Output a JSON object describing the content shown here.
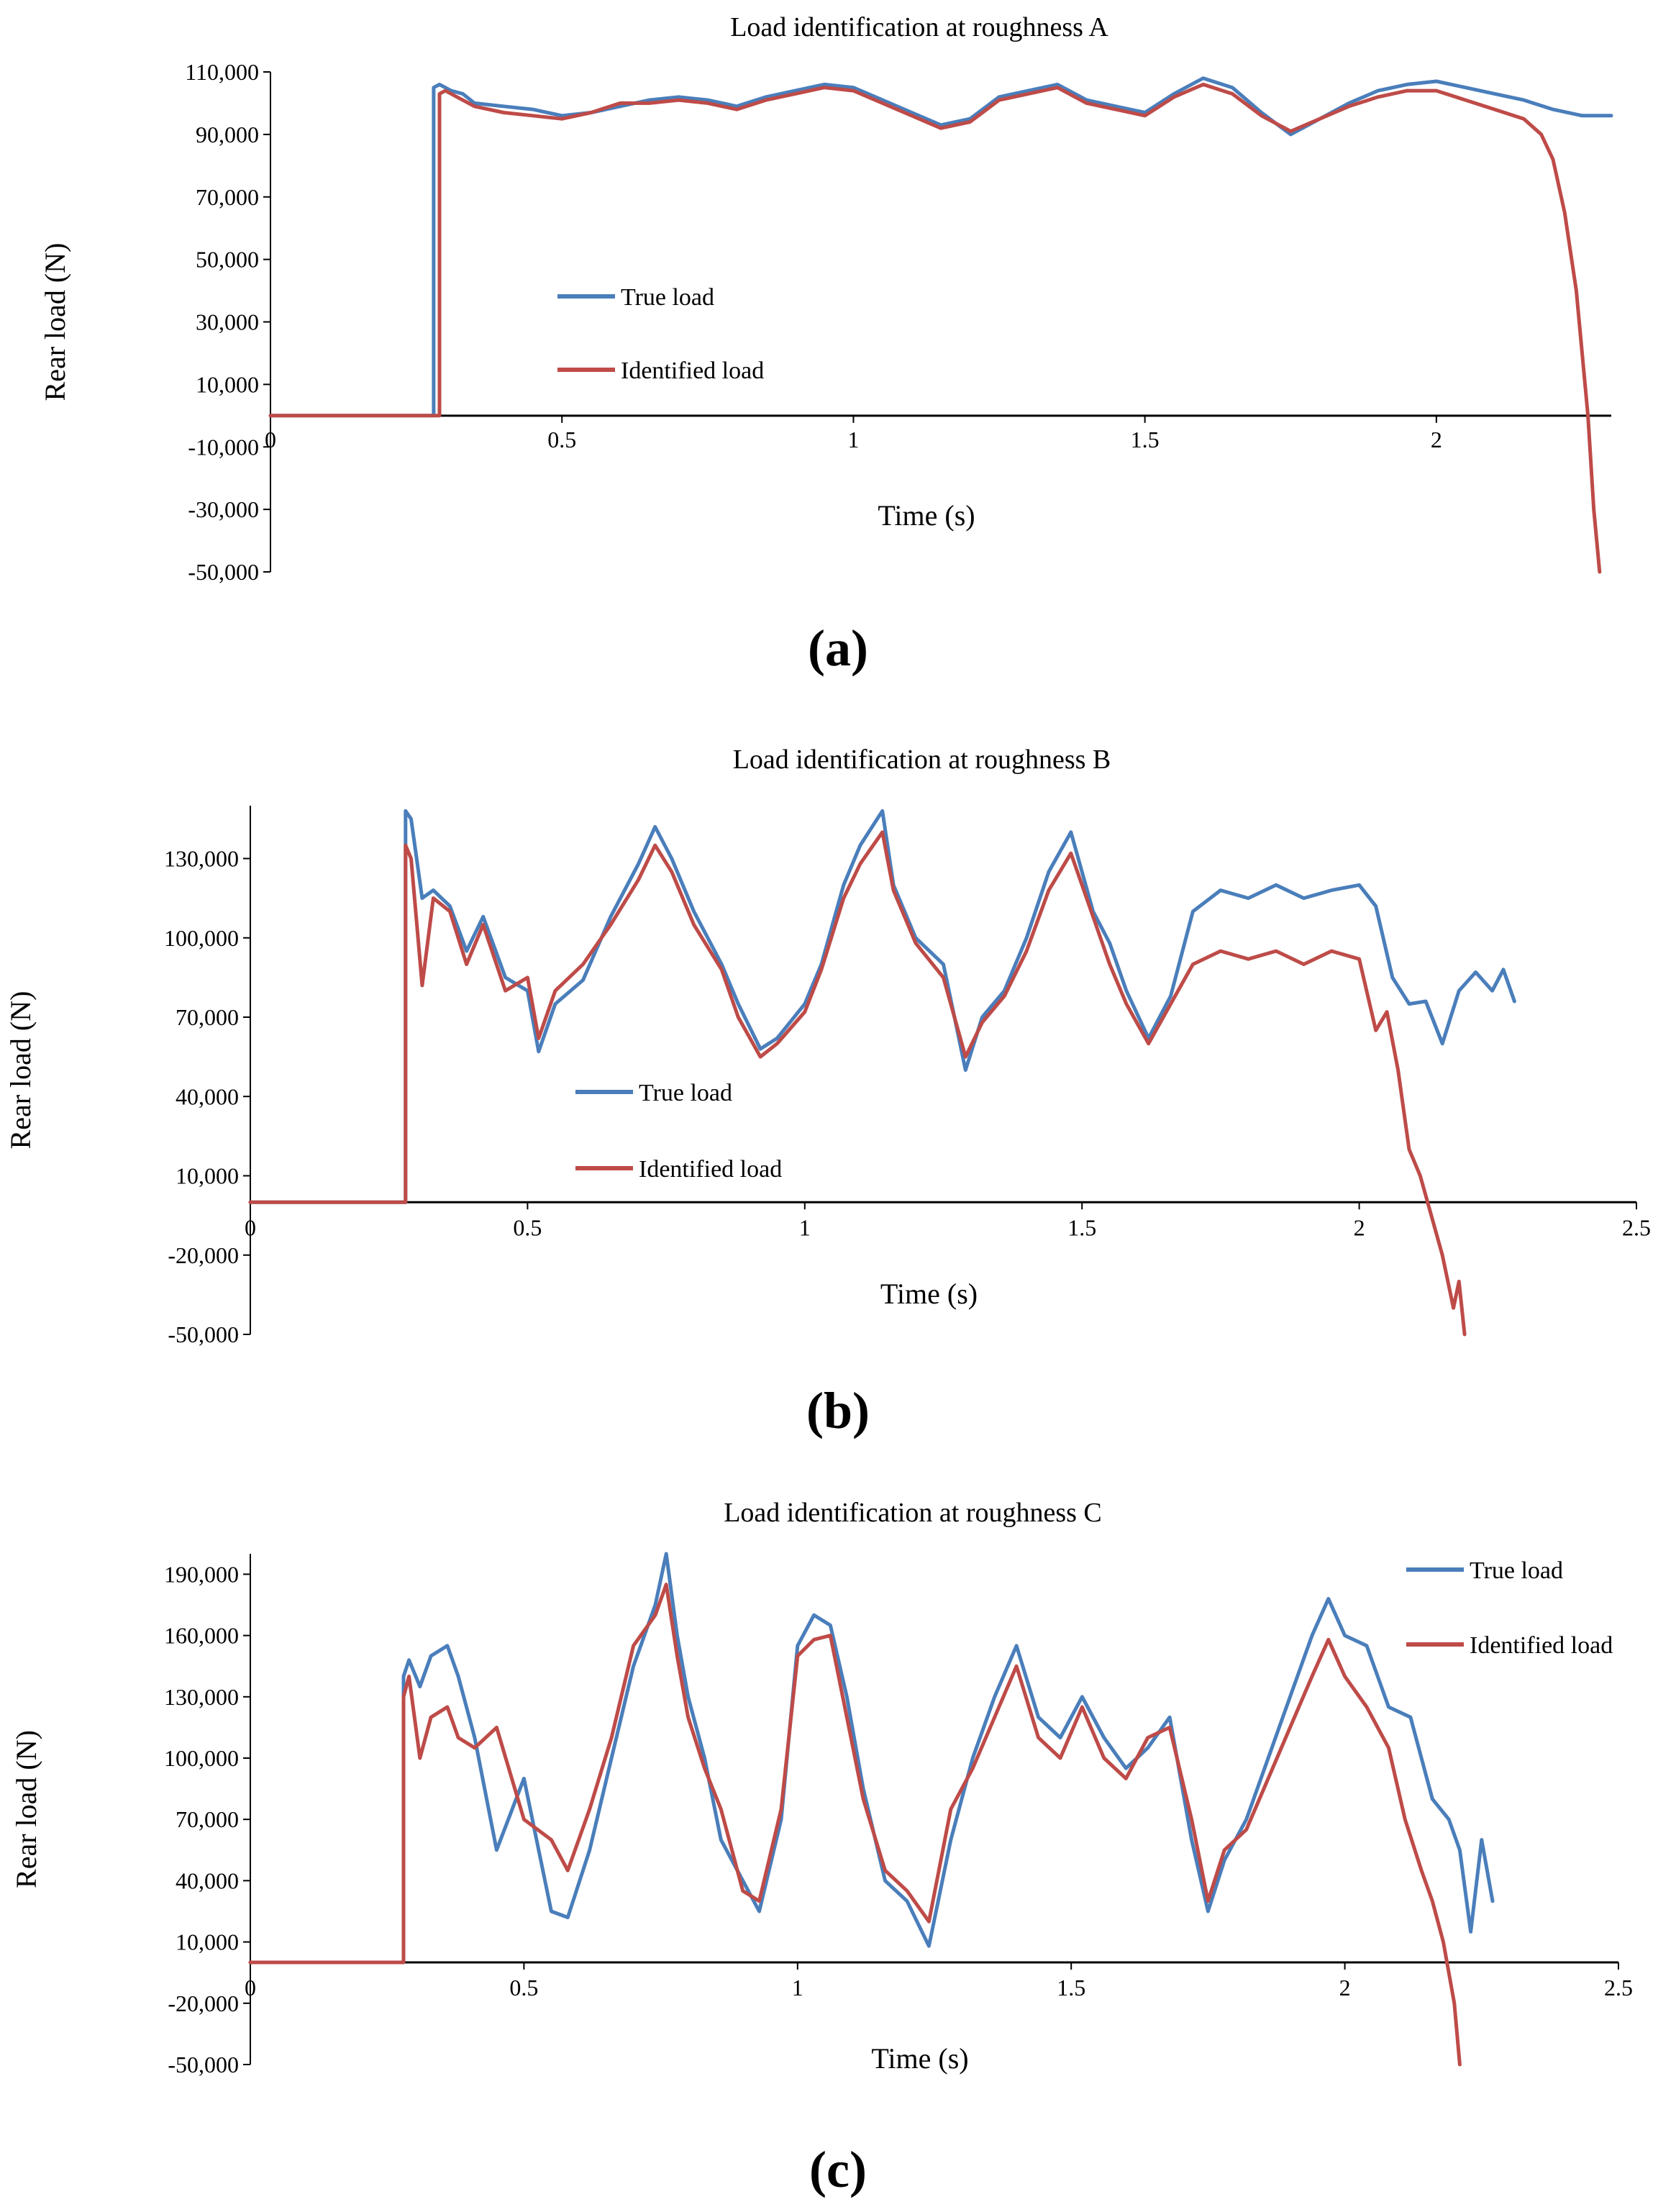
{
  "colors": {
    "true_load": "#4a7ebb",
    "identified_load": "#be4b48",
    "axis": "#000000"
  },
  "chart_data": [
    {
      "type": "line",
      "panel_label": "(a)",
      "title": "Load identification at roughness A",
      "xlabel": "Time (s)",
      "ylabel": "Rear load (N)",
      "xlim": [
        0,
        2.3
      ],
      "ylim": [
        -50000,
        110000
      ],
      "xticks": [
        0,
        0.5,
        1,
        1.5,
        2
      ],
      "xtick_labels": [
        "0",
        "0.5",
        "1",
        "1.5",
        "2"
      ],
      "yticks": [
        110000,
        90000,
        70000,
        50000,
        30000,
        10000,
        -10000,
        -30000,
        -50000
      ],
      "ytick_labels": [
        "110,000",
        "90,000",
        "70,000",
        "50,000",
        "30,000",
        "10,000",
        "-10,000",
        "-30,000",
        "-50,000"
      ],
      "legend": [
        "True load",
        "Identified load"
      ],
      "legend_position": "center-left",
      "series": [
        {
          "name": "True load",
          "color": "#4a7ebb",
          "x": [
            0,
            0.28,
            0.28,
            0.29,
            0.31,
            0.33,
            0.35,
            0.4,
            0.45,
            0.5,
            0.55,
            0.6,
            0.65,
            0.7,
            0.75,
            0.8,
            0.85,
            0.9,
            0.95,
            1.0,
            1.05,
            1.1,
            1.15,
            1.2,
            1.25,
            1.3,
            1.35,
            1.4,
            1.45,
            1.5,
            1.55,
            1.6,
            1.65,
            1.7,
            1.75,
            1.8,
            1.85,
            1.9,
            1.95,
            2.0,
            2.05,
            2.1,
            2.15,
            2.2,
            2.25,
            2.3
          ],
          "y": [
            0,
            0,
            105000,
            106000,
            104000,
            103000,
            100000,
            99000,
            98000,
            96000,
            97000,
            99000,
            101000,
            102000,
            101000,
            99000,
            102000,
            104000,
            106000,
            105000,
            101000,
            97000,
            93000,
            95000,
            102000,
            104000,
            106000,
            101000,
            99000,
            97000,
            103000,
            108000,
            105000,
            97000,
            90000,
            95000,
            100000,
            104000,
            106000,
            107000,
            105000,
            103000,
            101000,
            98000,
            96000,
            96000
          ]
        },
        {
          "name": "Identified load",
          "color": "#be4b48",
          "x": [
            0,
            0.29,
            0.29,
            0.3,
            0.32,
            0.35,
            0.4,
            0.45,
            0.5,
            0.55,
            0.6,
            0.65,
            0.7,
            0.75,
            0.8,
            0.85,
            0.9,
            0.95,
            1.0,
            1.05,
            1.1,
            1.15,
            1.2,
            1.25,
            1.3,
            1.35,
            1.4,
            1.45,
            1.5,
            1.55,
            1.6,
            1.65,
            1.7,
            1.75,
            1.8,
            1.85,
            1.9,
            1.95,
            2.0,
            2.05,
            2.1,
            2.15,
            2.18,
            2.2,
            2.22,
            2.24,
            2.26,
            2.27,
            2.28
          ],
          "y": [
            0,
            0,
            103000,
            104000,
            102000,
            99000,
            97000,
            96000,
            95000,
            97000,
            100000,
            100000,
            101000,
            100000,
            98000,
            101000,
            103000,
            105000,
            104000,
            100000,
            96000,
            92000,
            94000,
            101000,
            103000,
            105000,
            100000,
            98000,
            96000,
            102000,
            106000,
            103000,
            96000,
            91000,
            95000,
            99000,
            102000,
            104000,
            104000,
            101000,
            98000,
            95000,
            90000,
            82000,
            65000,
            40000,
            0,
            -30000,
            -50000
          ]
        }
      ]
    },
    {
      "type": "line",
      "panel_label": "(b)",
      "title": "Load identification at roughness B",
      "xlabel": "Time (s)",
      "ylabel": "Rear load (N)",
      "xlim": [
        0,
        2.5
      ],
      "ylim": [
        -50000,
        150000
      ],
      "xticks": [
        0,
        0.5,
        1,
        1.5,
        2,
        2.5
      ],
      "xtick_labels": [
        "0",
        "0.5",
        "1",
        "1.5",
        "2",
        "2.5"
      ],
      "yticks": [
        130000,
        100000,
        70000,
        40000,
        10000,
        -20000,
        -50000
      ],
      "ytick_labels": [
        "130,000",
        "100,000",
        "70,000",
        "40,000",
        "10,000",
        "-20,000",
        "-50,000"
      ],
      "legend": [
        "True load",
        "Identified load"
      ],
      "legend_position": "center",
      "series": [
        {
          "name": "True load",
          "color": "#4a7ebb",
          "x": [
            0,
            0.28,
            0.28,
            0.29,
            0.31,
            0.33,
            0.36,
            0.39,
            0.42,
            0.46,
            0.5,
            0.52,
            0.55,
            0.6,
            0.65,
            0.7,
            0.73,
            0.76,
            0.8,
            0.85,
            0.88,
            0.92,
            0.95,
            1.0,
            1.03,
            1.07,
            1.1,
            1.14,
            1.16,
            1.2,
            1.25,
            1.29,
            1.32,
            1.36,
            1.4,
            1.44,
            1.48,
            1.52,
            1.55,
            1.58,
            1.62,
            1.66,
            1.7,
            1.75,
            1.8,
            1.85,
            1.9,
            1.95,
            2.0,
            2.03,
            2.06,
            2.09,
            2.12,
            2.15,
            2.18,
            2.21,
            2.24,
            2.26,
            2.28
          ],
          "y": [
            0,
            0,
            148000,
            145000,
            115000,
            118000,
            112000,
            95000,
            108000,
            85000,
            80000,
            57000,
            75000,
            84000,
            108000,
            128000,
            142000,
            130000,
            110000,
            90000,
            75000,
            58000,
            62000,
            75000,
            90000,
            120000,
            135000,
            148000,
            120000,
            100000,
            90000,
            50000,
            70000,
            80000,
            100000,
            125000,
            140000,
            110000,
            98000,
            80000,
            62000,
            78000,
            110000,
            118000,
            115000,
            120000,
            115000,
            118000,
            120000,
            112000,
            85000,
            75000,
            76000,
            60000,
            80000,
            87000,
            80000,
            88000,
            76000
          ]
        },
        {
          "name": "Identified load",
          "color": "#be4b48",
          "x": [
            0,
            0.28,
            0.28,
            0.29,
            0.31,
            0.33,
            0.36,
            0.39,
            0.42,
            0.46,
            0.5,
            0.52,
            0.55,
            0.6,
            0.65,
            0.7,
            0.73,
            0.76,
            0.8,
            0.85,
            0.88,
            0.92,
            0.95,
            1.0,
            1.03,
            1.07,
            1.1,
            1.14,
            1.16,
            1.2,
            1.25,
            1.29,
            1.32,
            1.36,
            1.4,
            1.44,
            1.48,
            1.52,
            1.55,
            1.58,
            1.62,
            1.66,
            1.7,
            1.75,
            1.8,
            1.85,
            1.9,
            1.95,
            2.0,
            2.03,
            2.05,
            2.07,
            2.09,
            2.11,
            2.13,
            2.15,
            2.17,
            2.18,
            2.19
          ],
          "y": [
            0,
            0,
            135000,
            130000,
            82000,
            115000,
            110000,
            90000,
            105000,
            80000,
            85000,
            62000,
            80000,
            90000,
            105000,
            122000,
            135000,
            125000,
            105000,
            88000,
            70000,
            55000,
            60000,
            72000,
            88000,
            115000,
            128000,
            140000,
            118000,
            98000,
            85000,
            55000,
            68000,
            78000,
            95000,
            118000,
            132000,
            108000,
            90000,
            75000,
            60000,
            75000,
            90000,
            95000,
            92000,
            95000,
            90000,
            95000,
            92000,
            65000,
            72000,
            50000,
            20000,
            10000,
            -5000,
            -20000,
            -40000,
            -30000,
            -50000
          ]
        }
      ]
    },
    {
      "type": "line",
      "panel_label": "(c)",
      "title": "Load identification at roughness C",
      "xlabel": "Time (s)",
      "ylabel": "Rear load (N)",
      "xlim": [
        0,
        2.5
      ],
      "ylim": [
        -50000,
        200000
      ],
      "xticks": [
        0,
        0.5,
        1,
        1.5,
        2,
        2.5
      ],
      "xtick_labels": [
        "0",
        "0.5",
        "1",
        "1.5",
        "2",
        "2.5"
      ],
      "yticks": [
        190000,
        160000,
        130000,
        100000,
        70000,
        40000,
        10000,
        -20000,
        -50000
      ],
      "ytick_labels": [
        "190,000",
        "160,000",
        "130,000",
        "100,000",
        "70,000",
        "40,000",
        "10,000",
        "-20,000",
        "-50,000"
      ],
      "legend": [
        "True load",
        "Identified load"
      ],
      "legend_position": "top-right",
      "series": [
        {
          "name": "True load",
          "color": "#4a7ebb",
          "x": [
            0,
            0.28,
            0.28,
            0.29,
            0.31,
            0.33,
            0.36,
            0.38,
            0.41,
            0.45,
            0.5,
            0.55,
            0.58,
            0.62,
            0.66,
            0.7,
            0.74,
            0.76,
            0.78,
            0.8,
            0.83,
            0.86,
            0.9,
            0.93,
            0.97,
            1.0,
            1.03,
            1.06,
            1.09,
            1.12,
            1.16,
            1.2,
            1.24,
            1.28,
            1.32,
            1.36,
            1.4,
            1.44,
            1.48,
            1.52,
            1.56,
            1.6,
            1.64,
            1.68,
            1.72,
            1.75,
            1.78,
            1.82,
            1.86,
            1.9,
            1.94,
            1.97,
            2.0,
            2.04,
            2.08,
            2.12,
            2.16,
            2.19,
            2.21,
            2.23,
            2.25,
            2.27
          ],
          "y": [
            0,
            0,
            140000,
            148000,
            135000,
            150000,
            155000,
            140000,
            110000,
            55000,
            90000,
            25000,
            22000,
            55000,
            100000,
            145000,
            175000,
            200000,
            160000,
            130000,
            100000,
            60000,
            40000,
            25000,
            70000,
            155000,
            170000,
            165000,
            130000,
            85000,
            40000,
            30000,
            8000,
            60000,
            100000,
            130000,
            155000,
            120000,
            110000,
            130000,
            110000,
            95000,
            105000,
            120000,
            60000,
            25000,
            50000,
            70000,
            100000,
            130000,
            160000,
            178000,
            160000,
            155000,
            125000,
            120000,
            80000,
            70000,
            55000,
            15000,
            60000,
            30000
          ]
        },
        {
          "name": "Identified load",
          "color": "#be4b48",
          "x": [
            0,
            0.28,
            0.28,
            0.29,
            0.31,
            0.33,
            0.36,
            0.38,
            0.41,
            0.45,
            0.5,
            0.55,
            0.58,
            0.62,
            0.66,
            0.7,
            0.74,
            0.76,
            0.78,
            0.8,
            0.83,
            0.86,
            0.9,
            0.93,
            0.97,
            1.0,
            1.03,
            1.06,
            1.09,
            1.12,
            1.16,
            1.2,
            1.24,
            1.28,
            1.32,
            1.36,
            1.4,
            1.44,
            1.48,
            1.52,
            1.56,
            1.6,
            1.64,
            1.68,
            1.72,
            1.75,
            1.78,
            1.82,
            1.86,
            1.9,
            1.94,
            1.97,
            2.0,
            2.04,
            2.08,
            2.11,
            2.14,
            2.16,
            2.18,
            2.2,
            2.21
          ],
          "y": [
            0,
            0,
            130000,
            140000,
            100000,
            120000,
            125000,
            110000,
            105000,
            115000,
            70000,
            60000,
            45000,
            75000,
            110000,
            155000,
            170000,
            185000,
            150000,
            120000,
            95000,
            75000,
            35000,
            30000,
            75000,
            150000,
            158000,
            160000,
            120000,
            80000,
            45000,
            35000,
            20000,
            75000,
            95000,
            120000,
            145000,
            110000,
            100000,
            125000,
            100000,
            90000,
            110000,
            115000,
            70000,
            30000,
            55000,
            65000,
            90000,
            115000,
            140000,
            158000,
            140000,
            125000,
            105000,
            70000,
            45000,
            30000,
            10000,
            -20000,
            -50000
          ]
        }
      ]
    }
  ]
}
